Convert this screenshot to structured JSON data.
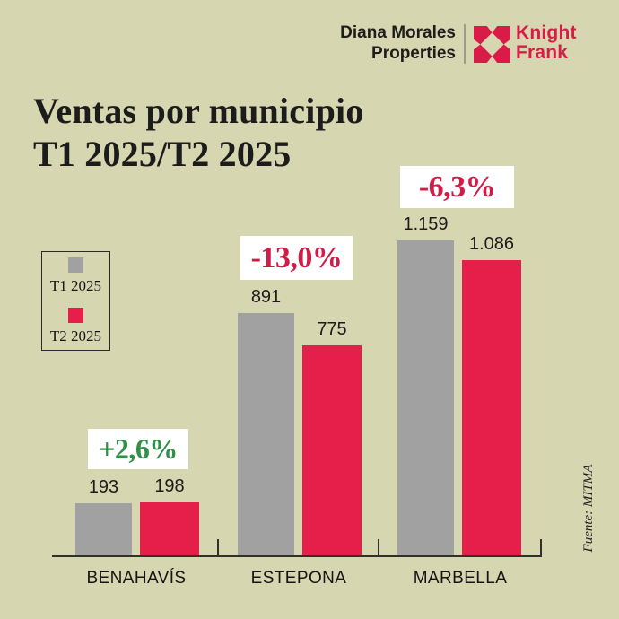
{
  "header": {
    "company_line1": "Diana Morales",
    "company_line2": "Properties",
    "brand_line1": "Knight",
    "brand_line2": "Frank"
  },
  "title": {
    "line1": "Ventas por municipio",
    "line2": "T1 2025/T2 2025"
  },
  "source_label": "Fuente: MITMA",
  "colors": {
    "background": "#d6d6b1",
    "bar_gray": "#a1a1a1",
    "bar_red": "#e61e4a",
    "brand_red": "#d91c47",
    "change_negative": "#d01c46",
    "change_positive": "#2e9147",
    "text_dark": "#1c1c1c"
  },
  "chart_data": {
    "type": "bar",
    "title": "Ventas por municipio T1 2025/T2 2025",
    "categories": [
      "BENAHAVÍS",
      "ESTEPONA",
      "MARBELLA"
    ],
    "series": [
      {
        "name": "T1 2025",
        "color": "#a1a1a1",
        "values": [
          193,
          891,
          1159
        ],
        "labels": [
          "193",
          "891",
          "1.159"
        ]
      },
      {
        "name": "T2 2025",
        "color": "#e61e4a",
        "values": [
          198,
          775,
          1086
        ],
        "labels": [
          "198",
          "775",
          "1.086"
        ]
      }
    ],
    "changes": [
      {
        "text": "+2,6%",
        "direction": "up",
        "color": "#2e9147"
      },
      {
        "text": "-13,0%",
        "direction": "down",
        "color": "#d01c46"
      },
      {
        "text": "-6,3%",
        "direction": "down",
        "color": "#d01c46"
      }
    ],
    "ylim": [
      0,
      1200
    ],
    "grid": false,
    "legend_position": "left",
    "value_labels_shown": true
  }
}
